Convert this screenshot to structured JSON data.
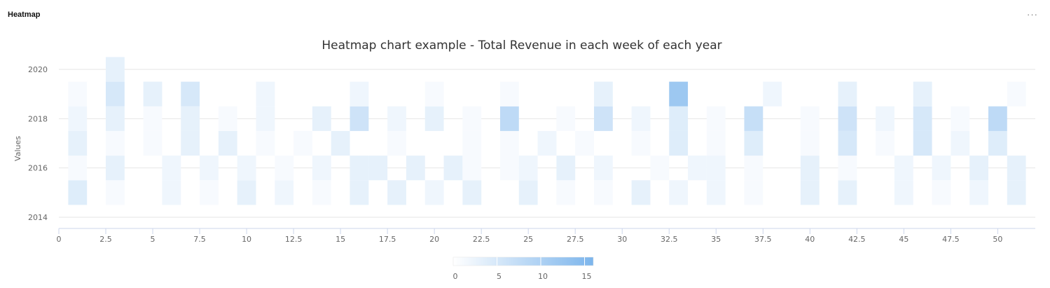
{
  "panel": {
    "title": "Heatmap",
    "menu_label": "···"
  },
  "colors": {
    "min": "#ffffff",
    "max": "#7cb5ec",
    "grid": "#e6e6e6",
    "axis": "#ccd6eb"
  },
  "chart_data": {
    "type": "heatmap",
    "title": "Heatmap chart example - Total Revenue in each week of each year",
    "ylabel": "Values",
    "xlabel": "",
    "xlim": [
      0,
      52
    ],
    "ylim": [
      2014,
      2020
    ],
    "x_ticks": [
      "0",
      "2.5",
      "5",
      "7.5",
      "10",
      "12.5",
      "15",
      "17.5",
      "20",
      "22.5",
      "25",
      "27.5",
      "30",
      "32.5",
      "35",
      "37.5",
      "40",
      "42.5",
      "45",
      "47.5",
      "50"
    ],
    "y_ticks": [
      "2014",
      "2016",
      "2018",
      "2020"
    ],
    "colorAxis": {
      "min": 0,
      "max": 16,
      "ticks": [
        "0",
        "5",
        "10",
        "15"
      ]
    },
    "grid": true,
    "legend": "bottom-center",
    "points": [
      [
        1,
        2015,
        4
      ],
      [
        1,
        2016,
        1
      ],
      [
        1,
        2017,
        3
      ],
      [
        1,
        2018,
        2
      ],
      [
        1,
        2019,
        1
      ],
      [
        3,
        2015,
        1
      ],
      [
        3,
        2016,
        3
      ],
      [
        3,
        2017,
        1
      ],
      [
        3,
        2018,
        3
      ],
      [
        3,
        2019,
        5
      ],
      [
        3,
        2020,
        3
      ],
      [
        5,
        2017,
        1
      ],
      [
        5,
        2018,
        1
      ],
      [
        5,
        2019,
        3
      ],
      [
        6,
        2015,
        2
      ],
      [
        6,
        2016,
        2
      ],
      [
        7,
        2017,
        3
      ],
      [
        7,
        2018,
        3
      ],
      [
        7,
        2019,
        5
      ],
      [
        8,
        2015,
        1
      ],
      [
        8,
        2016,
        2
      ],
      [
        9,
        2017,
        3
      ],
      [
        9,
        2018,
        1
      ],
      [
        10,
        2015,
        3
      ],
      [
        10,
        2016,
        2
      ],
      [
        11,
        2017,
        1
      ],
      [
        11,
        2018,
        2
      ],
      [
        11,
        2019,
        2
      ],
      [
        12,
        2015,
        2
      ],
      [
        12,
        2016,
        1
      ],
      [
        13,
        2017,
        1
      ],
      [
        14,
        2015,
        1
      ],
      [
        14,
        2016,
        2
      ],
      [
        14,
        2018,
        3
      ],
      [
        15,
        2017,
        3
      ],
      [
        16,
        2015,
        3
      ],
      [
        16,
        2016,
        3
      ],
      [
        16,
        2018,
        6
      ],
      [
        16,
        2019,
        2
      ],
      [
        17,
        2016,
        3
      ],
      [
        18,
        2015,
        3
      ],
      [
        18,
        2017,
        1
      ],
      [
        18,
        2018,
        2
      ],
      [
        19,
        2016,
        3
      ],
      [
        20,
        2015,
        2
      ],
      [
        20,
        2018,
        3
      ],
      [
        20,
        2019,
        1
      ],
      [
        21,
        2016,
        3
      ],
      [
        22,
        2015,
        3
      ],
      [
        22,
        2016,
        1
      ],
      [
        22,
        2017,
        1
      ],
      [
        22,
        2018,
        1
      ],
      [
        24,
        2016,
        1
      ],
      [
        24,
        2017,
        1
      ],
      [
        24,
        2018,
        8
      ],
      [
        24,
        2019,
        1
      ],
      [
        25,
        2015,
        3
      ],
      [
        25,
        2016,
        2
      ],
      [
        26,
        2017,
        2
      ],
      [
        27,
        2015,
        1
      ],
      [
        27,
        2016,
        3
      ],
      [
        27,
        2018,
        1
      ],
      [
        28,
        2017,
        1
      ],
      [
        29,
        2015,
        1
      ],
      [
        29,
        2016,
        2
      ],
      [
        29,
        2018,
        6
      ],
      [
        29,
        2019,
        3
      ],
      [
        31,
        2015,
        3
      ],
      [
        31,
        2017,
        1
      ],
      [
        31,
        2018,
        2
      ],
      [
        32,
        2016,
        1
      ],
      [
        33,
        2015,
        2
      ],
      [
        33,
        2017,
        4
      ],
      [
        33,
        2018,
        4
      ],
      [
        33,
        2019,
        12
      ],
      [
        34,
        2016,
        2
      ],
      [
        35,
        2015,
        2
      ],
      [
        35,
        2016,
        2
      ],
      [
        35,
        2017,
        1
      ],
      [
        35,
        2018,
        1
      ],
      [
        37,
        2015,
        1
      ],
      [
        37,
        2016,
        1
      ],
      [
        37,
        2017,
        4
      ],
      [
        37,
        2018,
        7
      ],
      [
        38,
        2019,
        2
      ],
      [
        40,
        2015,
        3
      ],
      [
        40,
        2016,
        3
      ],
      [
        40,
        2017,
        1
      ],
      [
        40,
        2018,
        1
      ],
      [
        42,
        2015,
        3
      ],
      [
        42,
        2016,
        1
      ],
      [
        42,
        2017,
        5
      ],
      [
        42,
        2018,
        6
      ],
      [
        42,
        2019,
        3
      ],
      [
        44,
        2017,
        1
      ],
      [
        44,
        2018,
        2
      ],
      [
        45,
        2015,
        2
      ],
      [
        45,
        2016,
        2
      ],
      [
        46,
        2017,
        5
      ],
      [
        46,
        2018,
        5
      ],
      [
        46,
        2019,
        3
      ],
      [
        47,
        2015,
        1
      ],
      [
        47,
        2016,
        2
      ],
      [
        48,
        2017,
        2
      ],
      [
        48,
        2018,
        1
      ],
      [
        49,
        2015,
        2
      ],
      [
        49,
        2016,
        3
      ],
      [
        50,
        2017,
        4
      ],
      [
        50,
        2018,
        8
      ],
      [
        51,
        2015,
        3
      ],
      [
        51,
        2016,
        3
      ],
      [
        51,
        2019,
        1
      ]
    ]
  }
}
